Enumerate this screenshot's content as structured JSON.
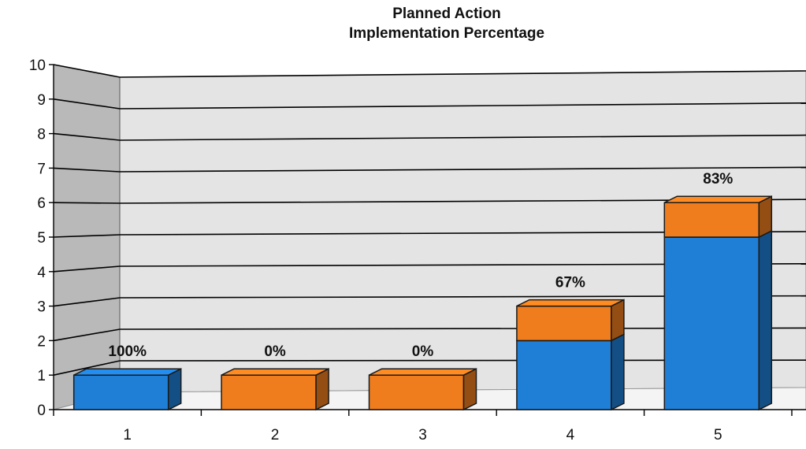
{
  "chart_data": {
    "type": "bar",
    "stacked": true,
    "three_d": true,
    "title": [
      "Planned Action",
      "Implementation Percentage"
    ],
    "xlabel": "",
    "ylabel": "",
    "categories": [
      "1",
      "2",
      "3",
      "4",
      "5"
    ],
    "ylim": [
      0,
      10
    ],
    "yticks": [
      "0",
      "1",
      "2",
      "3",
      "4",
      "5",
      "6",
      "7",
      "8",
      "9",
      "10"
    ],
    "grid": true,
    "legend": "none",
    "series": [
      {
        "color": "#1f7fd6",
        "values": [
          1,
          0,
          0,
          2,
          5
        ]
      },
      {
        "color": "#ef7d1e",
        "values": [
          0,
          1,
          1,
          1,
          1
        ]
      }
    ],
    "data_labels": [
      "100%",
      "0%",
      "0%",
      "67%",
      "83%"
    ]
  },
  "colors": {
    "wall_back": "#e4e4e4",
    "wall_side": "#b9b9b9",
    "floor": "#f4f4f4",
    "grid_line": "#000000"
  }
}
